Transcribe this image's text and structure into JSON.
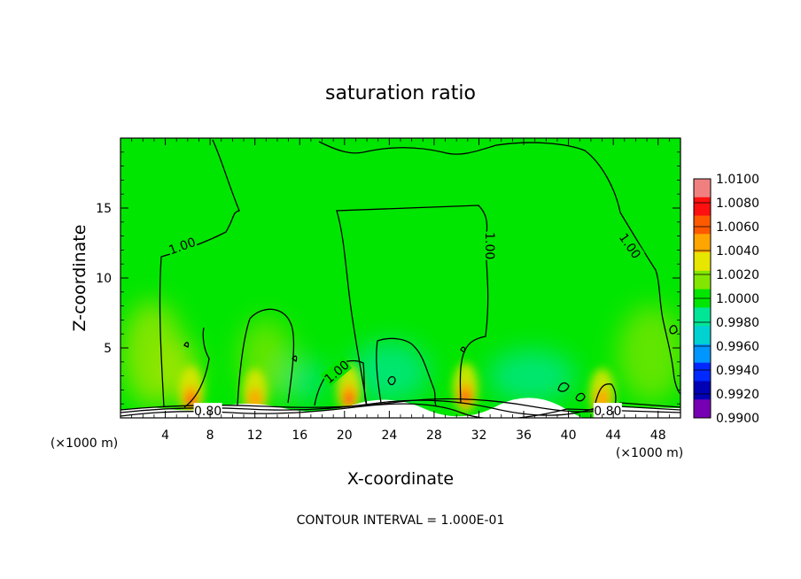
{
  "chart_data": {
    "type": "heatmap",
    "title": "saturation ratio",
    "xlabel": "X-coordinate",
    "ylabel": "Z-coordinate",
    "x_unit_left": "(×1000 m)",
    "x_unit_right": "(×1000 m)",
    "xlim": [
      0,
      50
    ],
    "ylim": [
      0,
      20
    ],
    "x_ticks": [
      4,
      8,
      12,
      16,
      20,
      24,
      28,
      32,
      36,
      40,
      44,
      48
    ],
    "y_ticks": [
      5,
      10,
      15
    ],
    "contour_labels": [
      {
        "text": "1.00",
        "x": 5.5,
        "y": 12.3,
        "angle": -20
      },
      {
        "text": "1.00",
        "x": 33.0,
        "y": 12.3,
        "angle": 90
      },
      {
        "text": "1.00",
        "x": 45.5,
        "y": 12.3,
        "angle": 55
      },
      {
        "text": "1.00",
        "x": 19.3,
        "y": 3.3,
        "angle": -40
      },
      {
        "text": "0.80",
        "x": 7.8,
        "y": 0.5,
        "angle": 0
      },
      {
        "text": "0.80",
        "x": 43.5,
        "y": 0.5,
        "angle": 0
      }
    ],
    "hotspots": [
      {
        "x": 6.3,
        "y": 1.2,
        "value": 1.008
      },
      {
        "x": 20.4,
        "y": 1.3,
        "value": 1.007
      },
      {
        "x": 30.8,
        "y": 1.4,
        "value": 1.008
      },
      {
        "x": 12.0,
        "y": 1.0,
        "value": 1.004
      },
      {
        "x": 43.0,
        "y": 1.0,
        "value": 1.003
      }
    ],
    "colorbar": {
      "levels": [
        "1.0100",
        "1.0080",
        "1.0060",
        "1.0040",
        "1.0020",
        "1.0000",
        "0.9980",
        "0.9960",
        "0.9940",
        "0.9920",
        "0.9900"
      ],
      "colors": [
        "#f08080",
        "#ff1010",
        "#ff5a00",
        "#ffa500",
        "#e6e600",
        "#82e600",
        "#00e600",
        "#00e696",
        "#00d2d2",
        "#0096ff",
        "#0028ff",
        "#0000b4",
        "#7800b4"
      ]
    },
    "footer": "CONTOUR INTERVAL = 1.000E-01"
  }
}
